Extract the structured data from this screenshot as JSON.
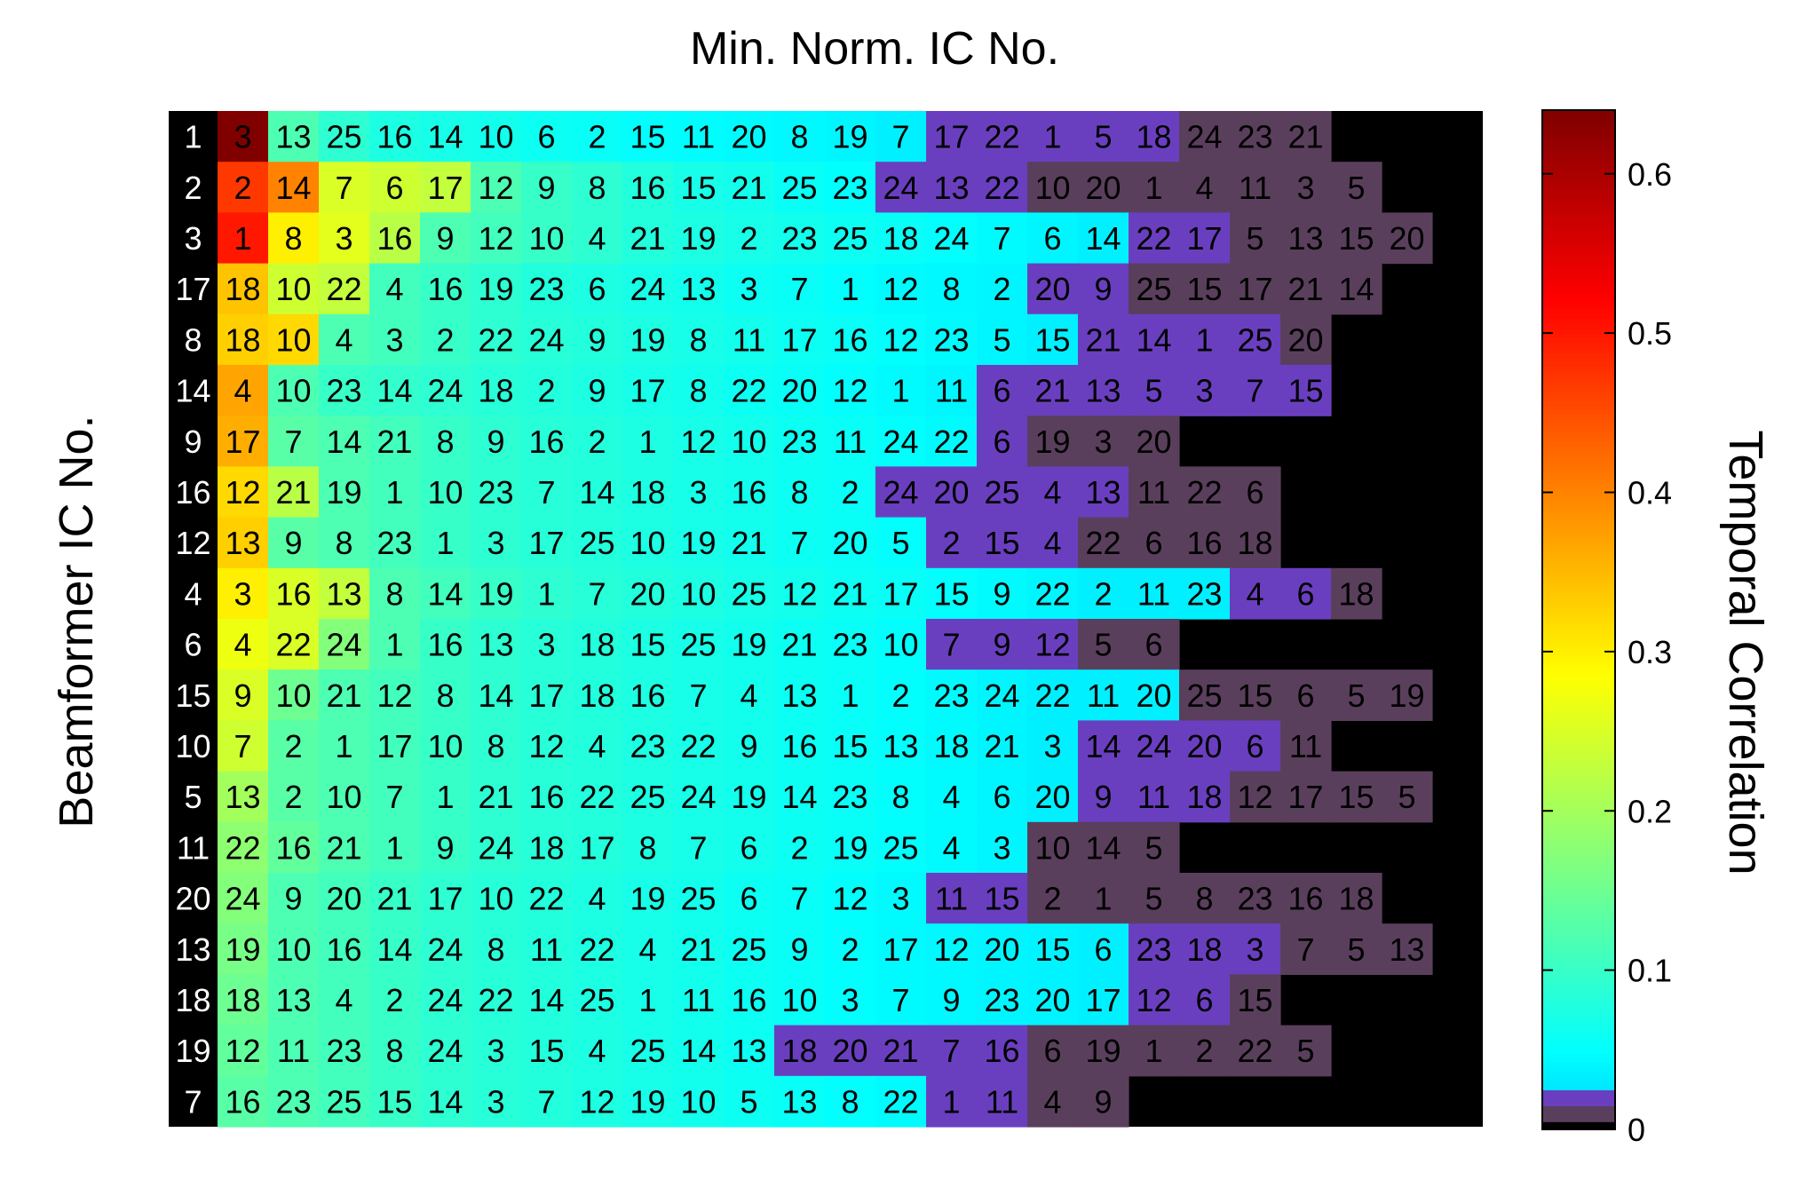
{
  "chart_data": {
    "type": "heatmap",
    "title": "Min. Norm. IC No.",
    "ylabel": "Beamformer IC No.",
    "colorbar_label": "Temporal Correlation",
    "colorbar_ticks": [
      {
        "value": 0,
        "label": "0"
      },
      {
        "value": 0.1,
        "label": "0.1"
      },
      {
        "value": 0.2,
        "label": "0.2"
      },
      {
        "value": 0.3,
        "label": "0.3"
      },
      {
        "value": 0.4,
        "label": "0.4"
      },
      {
        "value": 0.5,
        "label": "0.5"
      },
      {
        "value": 0.6,
        "label": "0.6"
      }
    ],
    "colorbar_range": [
      0,
      0.64
    ],
    "colormap": {
      "black_below": 0.005,
      "gray_below": 0.015,
      "purple_below": 0.025,
      "black": "#000000",
      "gray": "#5a3f5c",
      "purple": "#6a3fbf",
      "jet_start": 0.025
    },
    "row_labels": [
      "1",
      "2",
      "3",
      "17",
      "8",
      "14",
      "9",
      "16",
      "12",
      "4",
      "6",
      "15",
      "10",
      "5",
      "11",
      "20",
      "13",
      "18",
      "19",
      "7"
    ],
    "rows": [
      {
        "labels": [
          "3",
          "13",
          "25",
          "16",
          "14",
          "10",
          "6",
          "2",
          "15",
          "11",
          "20",
          "8",
          "19",
          "7",
          "17",
          "22",
          "1",
          "5",
          "18",
          "24",
          "23",
          "21"
        ],
        "values": [
          0.64,
          0.12,
          0.09,
          0.075,
          0.07,
          0.065,
          0.06,
          0.055,
          0.05,
          0.048,
          0.045,
          0.042,
          0.04,
          0.035,
          0.02,
          0.02,
          0.02,
          0.02,
          0.02,
          0.01,
          0.01,
          0.01
        ]
      },
      {
        "labels": [
          "2",
          "14",
          "7",
          "6",
          "17",
          "12",
          "9",
          "8",
          "16",
          "15",
          "21",
          "25",
          "23",
          "24",
          "13",
          "22",
          "10",
          "20",
          "1",
          "4",
          "11",
          "3",
          "5"
        ],
        "values": [
          0.47,
          0.4,
          0.25,
          0.24,
          0.23,
          0.12,
          0.1,
          0.09,
          0.08,
          0.07,
          0.065,
          0.055,
          0.05,
          0.02,
          0.02,
          0.02,
          0.01,
          0.01,
          0.01,
          0.01,
          0.01,
          0.01,
          0.01
        ]
      },
      {
        "labels": [
          "1",
          "8",
          "3",
          "16",
          "9",
          "12",
          "10",
          "4",
          "21",
          "19",
          "2",
          "23",
          "25",
          "18",
          "24",
          "7",
          "6",
          "14",
          "22",
          "17",
          "5",
          "13",
          "15",
          "20"
        ],
        "values": [
          0.5,
          0.3,
          0.26,
          0.22,
          0.12,
          0.11,
          0.1,
          0.09,
          0.08,
          0.075,
          0.07,
          0.065,
          0.06,
          0.055,
          0.05,
          0.045,
          0.04,
          0.035,
          0.02,
          0.02,
          0.01,
          0.01,
          0.01,
          0.01
        ]
      },
      {
        "labels": [
          "18",
          "10",
          "22",
          "4",
          "16",
          "19",
          "23",
          "6",
          "24",
          "13",
          "3",
          "7",
          "1",
          "12",
          "8",
          "2",
          "20",
          "9",
          "25",
          "15",
          "17",
          "21",
          "14"
        ],
        "values": [
          0.34,
          0.24,
          0.23,
          0.11,
          0.1,
          0.09,
          0.08,
          0.075,
          0.07,
          0.065,
          0.06,
          0.055,
          0.05,
          0.045,
          0.042,
          0.04,
          0.02,
          0.02,
          0.01,
          0.01,
          0.01,
          0.01,
          0.01
        ]
      },
      {
        "labels": [
          "18",
          "10",
          "4",
          "3",
          "2",
          "22",
          "24",
          "9",
          "19",
          "8",
          "11",
          "17",
          "16",
          "12",
          "23",
          "5",
          "15",
          "21",
          "14",
          "1",
          "25",
          "20"
        ],
        "values": [
          0.33,
          0.32,
          0.12,
          0.11,
          0.1,
          0.09,
          0.085,
          0.08,
          0.075,
          0.07,
          0.065,
          0.06,
          0.055,
          0.05,
          0.045,
          0.04,
          0.035,
          0.02,
          0.02,
          0.02,
          0.02,
          0.01
        ]
      },
      {
        "labels": [
          "4",
          "10",
          "23",
          "14",
          "24",
          "18",
          "2",
          "9",
          "17",
          "8",
          "22",
          "20",
          "12",
          "1",
          "11",
          "6",
          "21",
          "13",
          "5",
          "3",
          "7",
          "15"
        ],
        "values": [
          0.37,
          0.12,
          0.1,
          0.095,
          0.09,
          0.085,
          0.08,
          0.075,
          0.07,
          0.065,
          0.06,
          0.055,
          0.05,
          0.045,
          0.04,
          0.02,
          0.02,
          0.02,
          0.02,
          0.02,
          0.02,
          0.02
        ]
      },
      {
        "labels": [
          "17",
          "7",
          "14",
          "21",
          "8",
          "9",
          "16",
          "2",
          "1",
          "12",
          "10",
          "23",
          "11",
          "24",
          "22",
          "6",
          "19",
          "3",
          "20"
        ],
        "values": [
          0.36,
          0.13,
          0.12,
          0.11,
          0.1,
          0.09,
          0.085,
          0.08,
          0.075,
          0.07,
          0.065,
          0.06,
          0.055,
          0.05,
          0.045,
          0.02,
          0.01,
          0.01,
          0.01
        ]
      },
      {
        "labels": [
          "12",
          "21",
          "19",
          "1",
          "10",
          "23",
          "7",
          "14",
          "18",
          "3",
          "16",
          "8",
          "2",
          "24",
          "20",
          "25",
          "4",
          "13",
          "11",
          "22",
          "6"
        ],
        "values": [
          0.32,
          0.22,
          0.12,
          0.11,
          0.1,
          0.09,
          0.085,
          0.08,
          0.075,
          0.07,
          0.065,
          0.06,
          0.055,
          0.02,
          0.02,
          0.02,
          0.02,
          0.02,
          0.01,
          0.01,
          0.01
        ]
      },
      {
        "labels": [
          "13",
          "9",
          "8",
          "23",
          "1",
          "3",
          "17",
          "25",
          "10",
          "19",
          "21",
          "7",
          "20",
          "5",
          "2",
          "15",
          "4",
          "22",
          "6",
          "16",
          "18"
        ],
        "values": [
          0.33,
          0.13,
          0.12,
          0.11,
          0.1,
          0.09,
          0.085,
          0.08,
          0.075,
          0.07,
          0.065,
          0.06,
          0.055,
          0.05,
          0.02,
          0.02,
          0.02,
          0.01,
          0.01,
          0.01,
          0.01
        ]
      },
      {
        "labels": [
          "3",
          "16",
          "13",
          "8",
          "14",
          "19",
          "1",
          "7",
          "20",
          "10",
          "25",
          "12",
          "21",
          "17",
          "15",
          "9",
          "22",
          "2",
          "11",
          "23",
          "4",
          "6",
          "18"
        ],
        "values": [
          0.3,
          0.25,
          0.23,
          0.12,
          0.11,
          0.1,
          0.09,
          0.085,
          0.08,
          0.075,
          0.07,
          0.065,
          0.06,
          0.055,
          0.05,
          0.045,
          0.04,
          0.035,
          0.035,
          0.035,
          0.02,
          0.02,
          0.01
        ]
      },
      {
        "labels": [
          "4",
          "22",
          "24",
          "1",
          "16",
          "13",
          "3",
          "18",
          "15",
          "25",
          "19",
          "21",
          "23",
          "10",
          "7",
          "9",
          "12",
          "5",
          "6"
        ],
        "values": [
          0.27,
          0.25,
          0.17,
          0.12,
          0.1,
          0.09,
          0.085,
          0.08,
          0.075,
          0.07,
          0.065,
          0.06,
          0.055,
          0.05,
          0.02,
          0.02,
          0.02,
          0.01,
          0.01
        ]
      },
      {
        "labels": [
          "9",
          "10",
          "21",
          "12",
          "8",
          "14",
          "17",
          "18",
          "16",
          "7",
          "4",
          "13",
          "1",
          "2",
          "23",
          "24",
          "22",
          "11",
          "20",
          "25",
          "15",
          "6",
          "5",
          "19"
        ],
        "values": [
          0.25,
          0.15,
          0.12,
          0.11,
          0.1,
          0.09,
          0.085,
          0.08,
          0.075,
          0.07,
          0.065,
          0.06,
          0.055,
          0.05,
          0.045,
          0.04,
          0.035,
          0.035,
          0.035,
          0.01,
          0.01,
          0.01,
          0.01,
          0.01
        ]
      },
      {
        "labels": [
          "7",
          "2",
          "1",
          "17",
          "10",
          "8",
          "12",
          "4",
          "23",
          "22",
          "9",
          "16",
          "15",
          "13",
          "18",
          "21",
          "3",
          "14",
          "24",
          "20",
          "6",
          "11"
        ],
        "values": [
          0.24,
          0.13,
          0.12,
          0.11,
          0.1,
          0.09,
          0.085,
          0.08,
          0.075,
          0.07,
          0.065,
          0.06,
          0.055,
          0.05,
          0.045,
          0.04,
          0.035,
          0.02,
          0.02,
          0.02,
          0.02,
          0.01
        ]
      },
      {
        "labels": [
          "13",
          "2",
          "10",
          "7",
          "1",
          "21",
          "16",
          "22",
          "25",
          "24",
          "19",
          "14",
          "23",
          "8",
          "4",
          "6",
          "20",
          "9",
          "11",
          "18",
          "12",
          "17",
          "15",
          "5"
        ],
        "values": [
          0.2,
          0.13,
          0.12,
          0.11,
          0.1,
          0.09,
          0.085,
          0.08,
          0.075,
          0.07,
          0.065,
          0.06,
          0.055,
          0.05,
          0.045,
          0.04,
          0.035,
          0.02,
          0.02,
          0.02,
          0.01,
          0.01,
          0.01,
          0.01
        ]
      },
      {
        "labels": [
          "22",
          "16",
          "21",
          "1",
          "9",
          "24",
          "18",
          "17",
          "8",
          "7",
          "6",
          "2",
          "19",
          "25",
          "4",
          "3",
          "10",
          "14",
          "5"
        ],
        "values": [
          0.18,
          0.14,
          0.12,
          0.11,
          0.1,
          0.09,
          0.085,
          0.08,
          0.075,
          0.07,
          0.065,
          0.06,
          0.055,
          0.05,
          0.045,
          0.04,
          0.01,
          0.01,
          0.01
        ]
      },
      {
        "labels": [
          "24",
          "9",
          "20",
          "21",
          "17",
          "10",
          "22",
          "4",
          "19",
          "25",
          "6",
          "7",
          "12",
          "3",
          "11",
          "15",
          "2",
          "1",
          "5",
          "8",
          "23",
          "16",
          "18"
        ],
        "values": [
          0.17,
          0.12,
          0.11,
          0.1,
          0.09,
          0.085,
          0.08,
          0.075,
          0.07,
          0.065,
          0.06,
          0.055,
          0.05,
          0.045,
          0.02,
          0.02,
          0.01,
          0.01,
          0.01,
          0.01,
          0.01,
          0.01,
          0.01
        ]
      },
      {
        "labels": [
          "19",
          "10",
          "16",
          "14",
          "24",
          "8",
          "11",
          "22",
          "4",
          "21",
          "25",
          "9",
          "2",
          "17",
          "12",
          "20",
          "15",
          "6",
          "23",
          "18",
          "3",
          "7",
          "5",
          "13"
        ],
        "values": [
          0.16,
          0.12,
          0.11,
          0.1,
          0.09,
          0.085,
          0.08,
          0.075,
          0.07,
          0.065,
          0.06,
          0.055,
          0.05,
          0.045,
          0.042,
          0.04,
          0.038,
          0.035,
          0.02,
          0.02,
          0.02,
          0.01,
          0.01,
          0.01
        ]
      },
      {
        "labels": [
          "18",
          "13",
          "4",
          "2",
          "24",
          "22",
          "14",
          "25",
          "1",
          "11",
          "16",
          "10",
          "3",
          "7",
          "9",
          "23",
          "20",
          "17",
          "12",
          "6",
          "15"
        ],
        "values": [
          0.15,
          0.12,
          0.11,
          0.1,
          0.09,
          0.085,
          0.08,
          0.075,
          0.07,
          0.065,
          0.06,
          0.055,
          0.05,
          0.045,
          0.042,
          0.04,
          0.038,
          0.035,
          0.02,
          0.02,
          0.01
        ]
      },
      {
        "labels": [
          "12",
          "11",
          "23",
          "8",
          "24",
          "3",
          "15",
          "4",
          "25",
          "14",
          "13",
          "18",
          "20",
          "21",
          "7",
          "16",
          "6",
          "19",
          "1",
          "2",
          "22",
          "5"
        ],
        "values": [
          0.14,
          0.12,
          0.11,
          0.1,
          0.09,
          0.085,
          0.08,
          0.075,
          0.07,
          0.065,
          0.06,
          0.02,
          0.02,
          0.02,
          0.02,
          0.02,
          0.01,
          0.01,
          0.01,
          0.01,
          0.01,
          0.01
        ]
      },
      {
        "labels": [
          "16",
          "23",
          "25",
          "15",
          "14",
          "3",
          "7",
          "12",
          "19",
          "10",
          "5",
          "13",
          "8",
          "22",
          "1",
          "11",
          "4",
          "9"
        ],
        "values": [
          0.13,
          0.12,
          0.11,
          0.1,
          0.09,
          0.085,
          0.08,
          0.075,
          0.07,
          0.065,
          0.06,
          0.055,
          0.05,
          0.045,
          0.02,
          0.02,
          0.01,
          0.01
        ]
      }
    ]
  }
}
